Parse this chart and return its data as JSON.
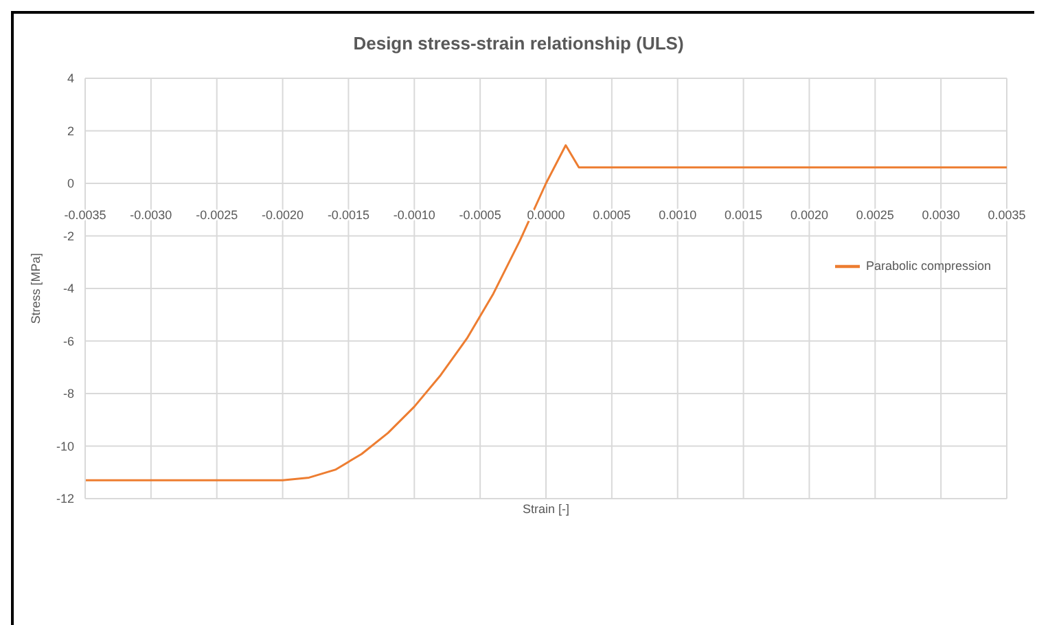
{
  "chart_data": {
    "type": "line",
    "title": "Design stress-strain relationship (ULS)",
    "xlabel": "Strain [-]",
    "ylabel": "Stress [MPa]",
    "x": [
      -0.0035,
      -0.002,
      -0.0018,
      -0.0016,
      -0.0014,
      -0.0012,
      -0.001,
      -0.0008,
      -0.0006,
      -0.0004,
      -0.0002,
      0,
      0.00015,
      0.00025,
      0.0035
    ],
    "series": [
      {
        "name": "Parabolic compression",
        "color": "#ed7d31",
        "values": [
          -11.3,
          -11.3,
          -11.2,
          -10.9,
          -10.3,
          -9.5,
          -8.5,
          -7.3,
          -5.9,
          -4.2,
          -2.2,
          0,
          1.45,
          0.61,
          0.61
        ]
      }
    ],
    "xlim": [
      -0.0035,
      0.0035
    ],
    "xticks": [
      -0.0035,
      {
        "value": -0.003,
        "label": "-0.0030"
      },
      -0.0025,
      {
        "value": -0.002,
        "label": "-0.0020"
      },
      -0.0015,
      {
        "value": -0.001,
        "label": "-0.0010"
      },
      -0.0005,
      {
        "value": 0,
        "label": "0.0000"
      },
      0.0005,
      {
        "value": 0.001,
        "label": "0.0010"
      },
      0.0015,
      {
        "value": 0.002,
        "label": "0.0020"
      },
      0.0025,
      {
        "value": 0.003,
        "label": "0.0030"
      },
      0.0035
    ],
    "ylim": [
      -12,
      4
    ],
    "yticks": [
      -12,
      -10,
      -8,
      -6,
      -4,
      -2,
      0,
      2,
      4
    ],
    "grid": true,
    "legend": "right",
    "marker": "none",
    "line_style": "solid"
  }
}
